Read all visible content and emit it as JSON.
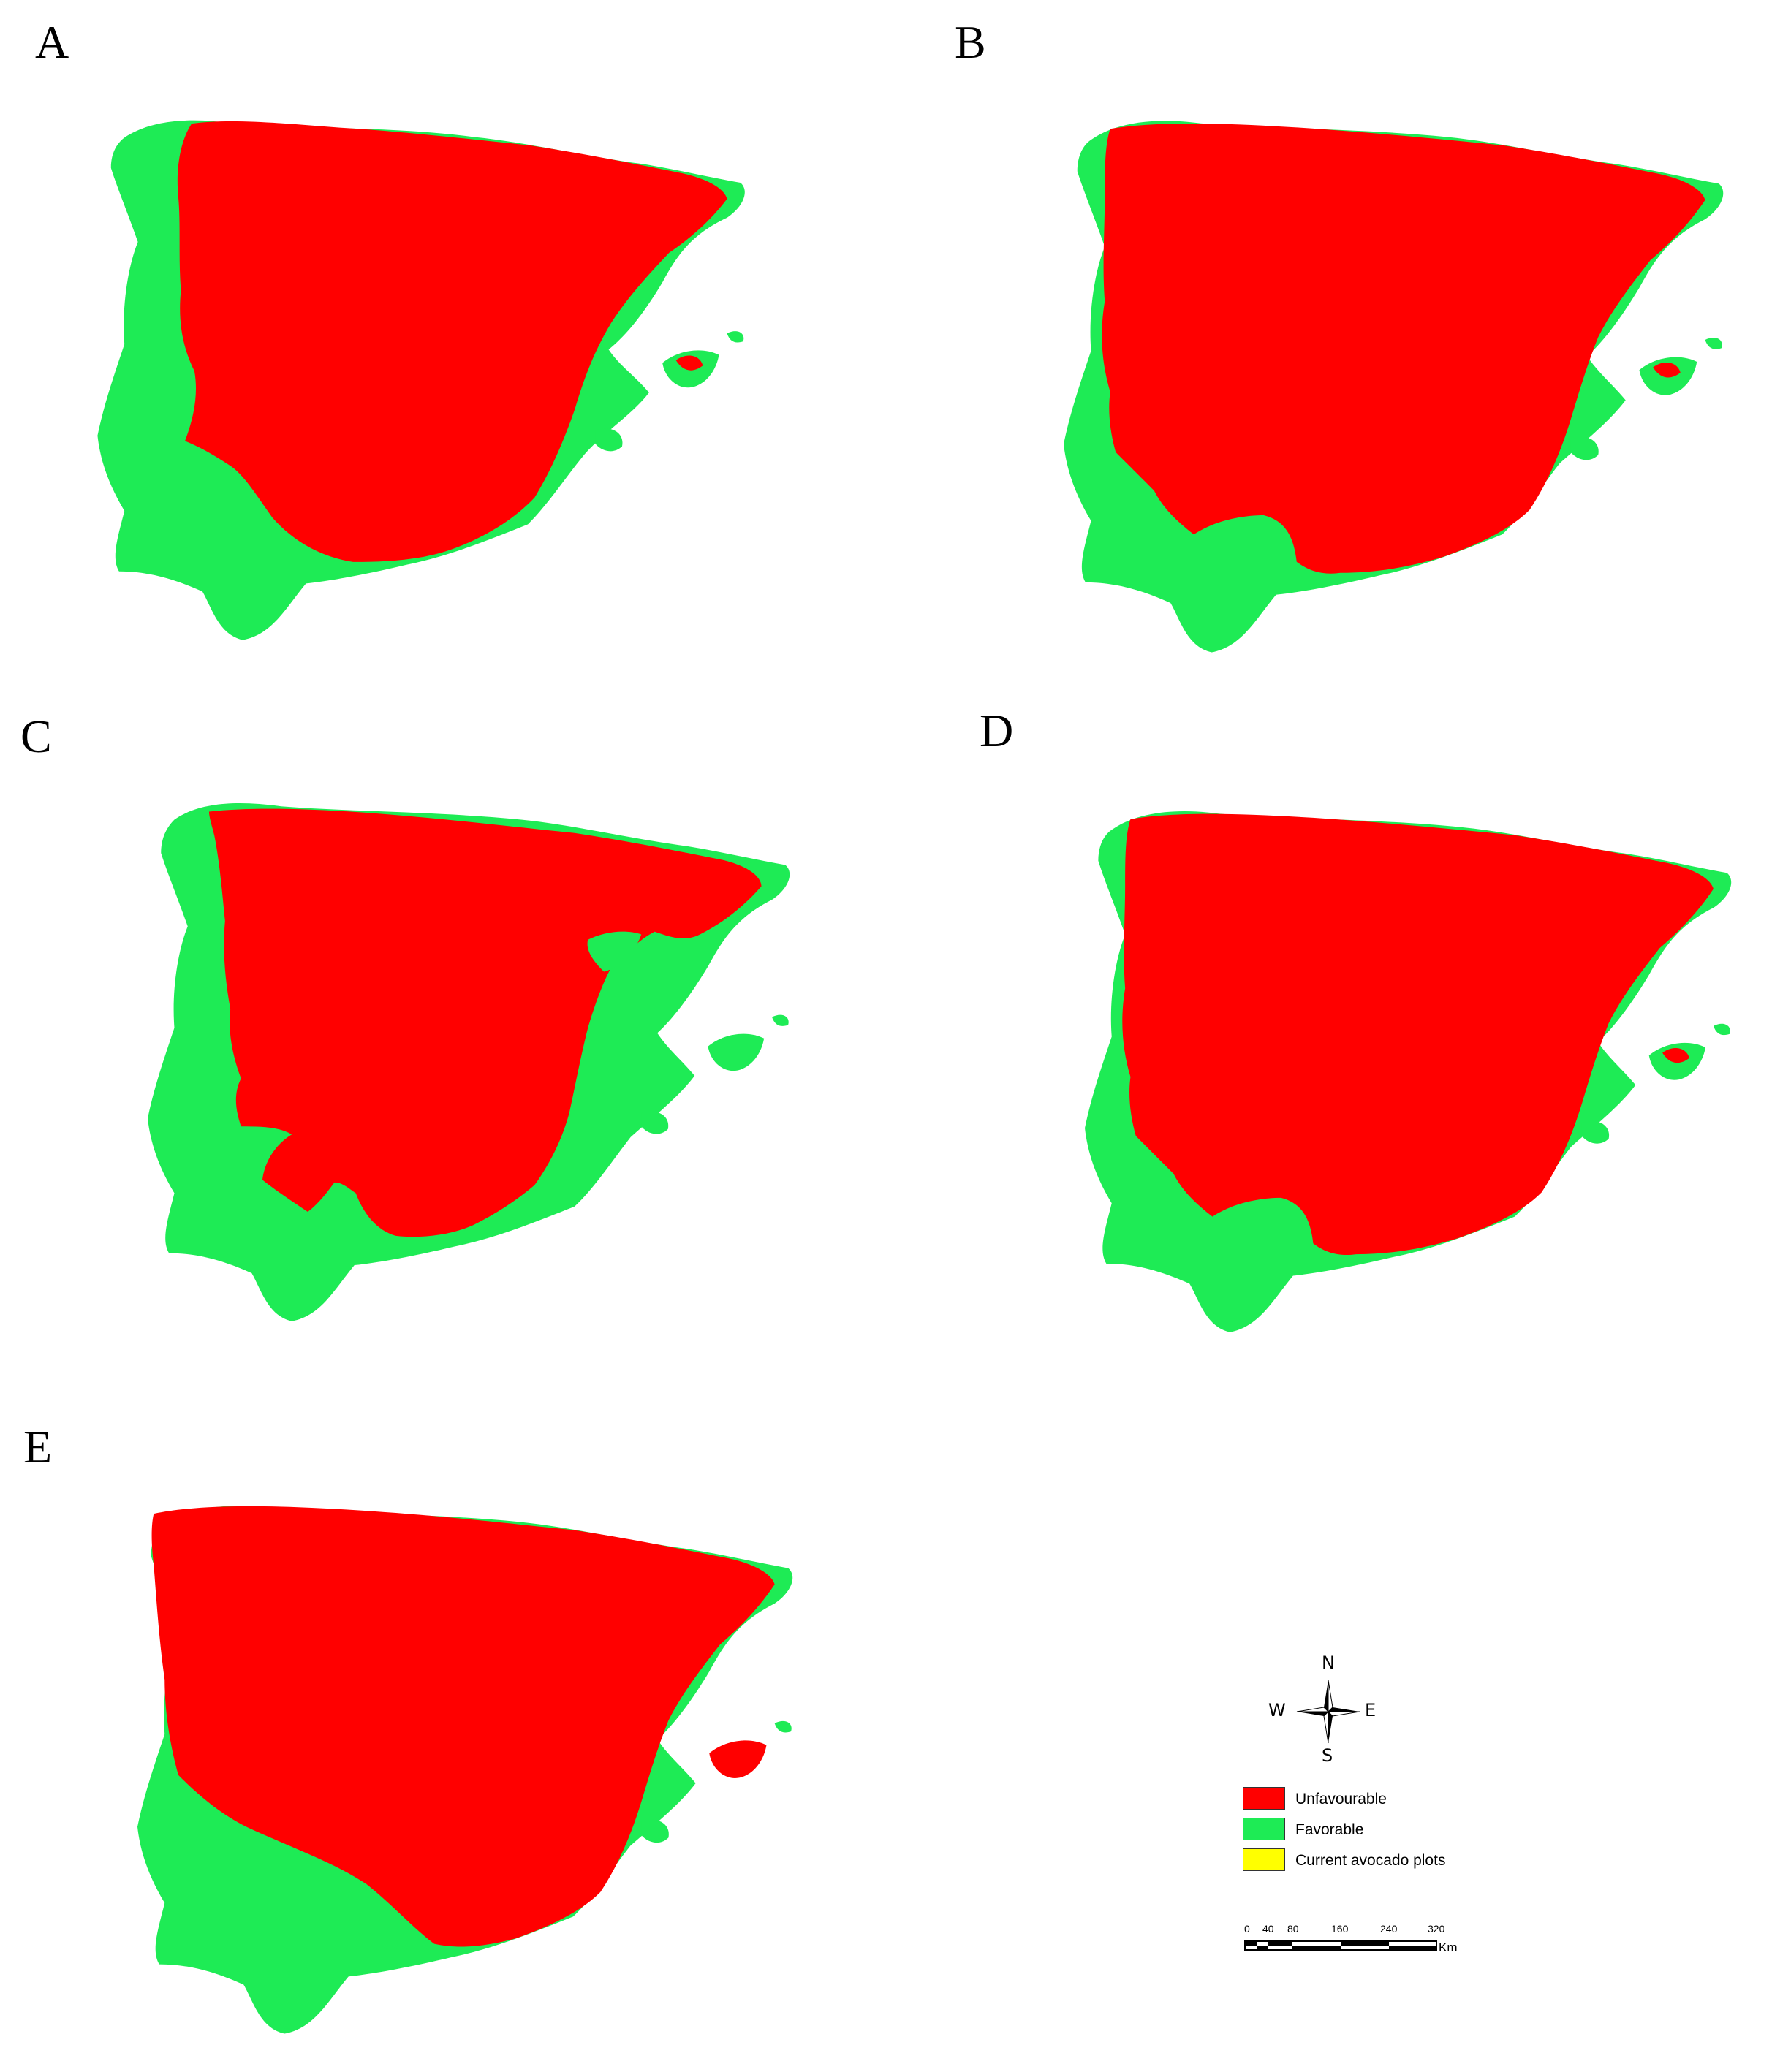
{
  "panels": [
    {
      "letter": "A"
    },
    {
      "letter": "B"
    },
    {
      "letter": "C"
    },
    {
      "letter": "D"
    },
    {
      "letter": "E"
    }
  ],
  "compass": {
    "n": "N",
    "s": "S",
    "e": "E",
    "w": "W"
  },
  "legend": [
    {
      "label": "Unfavourable",
      "color": "#ff0000"
    },
    {
      "label": "Favorable",
      "color": "#1eeb55"
    },
    {
      "label": "Current avocado plots",
      "color": "#ffff00"
    }
  ],
  "scalebar": {
    "ticks": [
      "0",
      "40",
      "80",
      "160",
      "240",
      "320"
    ],
    "unit": "Km"
  },
  "colors": {
    "unfavourable": "#ff0000",
    "favorable": "#1eeb55",
    "plots": "#ffff00"
  }
}
